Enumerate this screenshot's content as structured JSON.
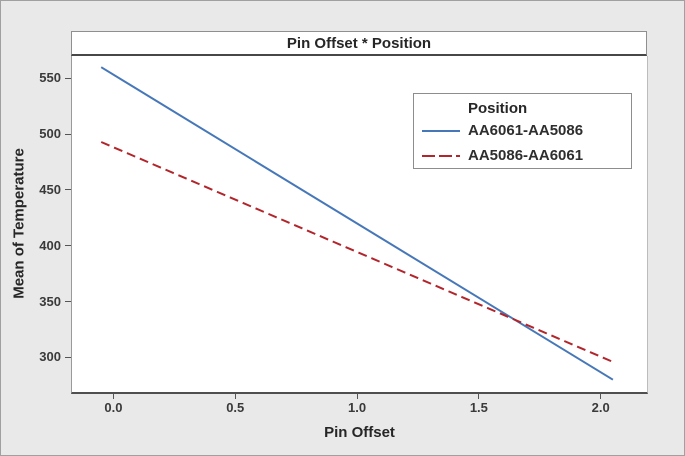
{
  "window": {
    "background": "#e9e9e9",
    "border_color": "#a0a0a0",
    "plot_background": "#ffffff"
  },
  "chart_data": {
    "type": "line",
    "title": "Pin Offset * Position",
    "xlabel": "Pin Offset",
    "ylabel": "Mean of Temperature",
    "x_ticks": [
      0.0,
      0.5,
      1.0,
      1.5,
      2.0
    ],
    "x_tick_labels": [
      "0.0",
      "0.5",
      "1.0",
      "1.5",
      "2.0"
    ],
    "y_ticks": [
      300,
      350,
      400,
      450,
      500,
      550
    ],
    "y_tick_labels": [
      "300",
      "350",
      "400",
      "450",
      "500",
      "550"
    ],
    "xlim": [
      -0.17,
      2.19
    ],
    "ylim": [
      269,
      570
    ],
    "grid": false,
    "legend": {
      "title": "Position",
      "position": "top-right-inside"
    },
    "series": [
      {
        "name": "AA6061-AA5086",
        "color": "#4677b8",
        "line_style": "solid",
        "points": [
          [
            -0.05,
            560
          ],
          [
            2.05,
            280
          ]
        ]
      },
      {
        "name": "AA5086-AA6061",
        "color": "#b2252b",
        "line_style": "dashed",
        "points": [
          [
            -0.05,
            493
          ],
          [
            2.05,
            296
          ]
        ]
      }
    ]
  }
}
